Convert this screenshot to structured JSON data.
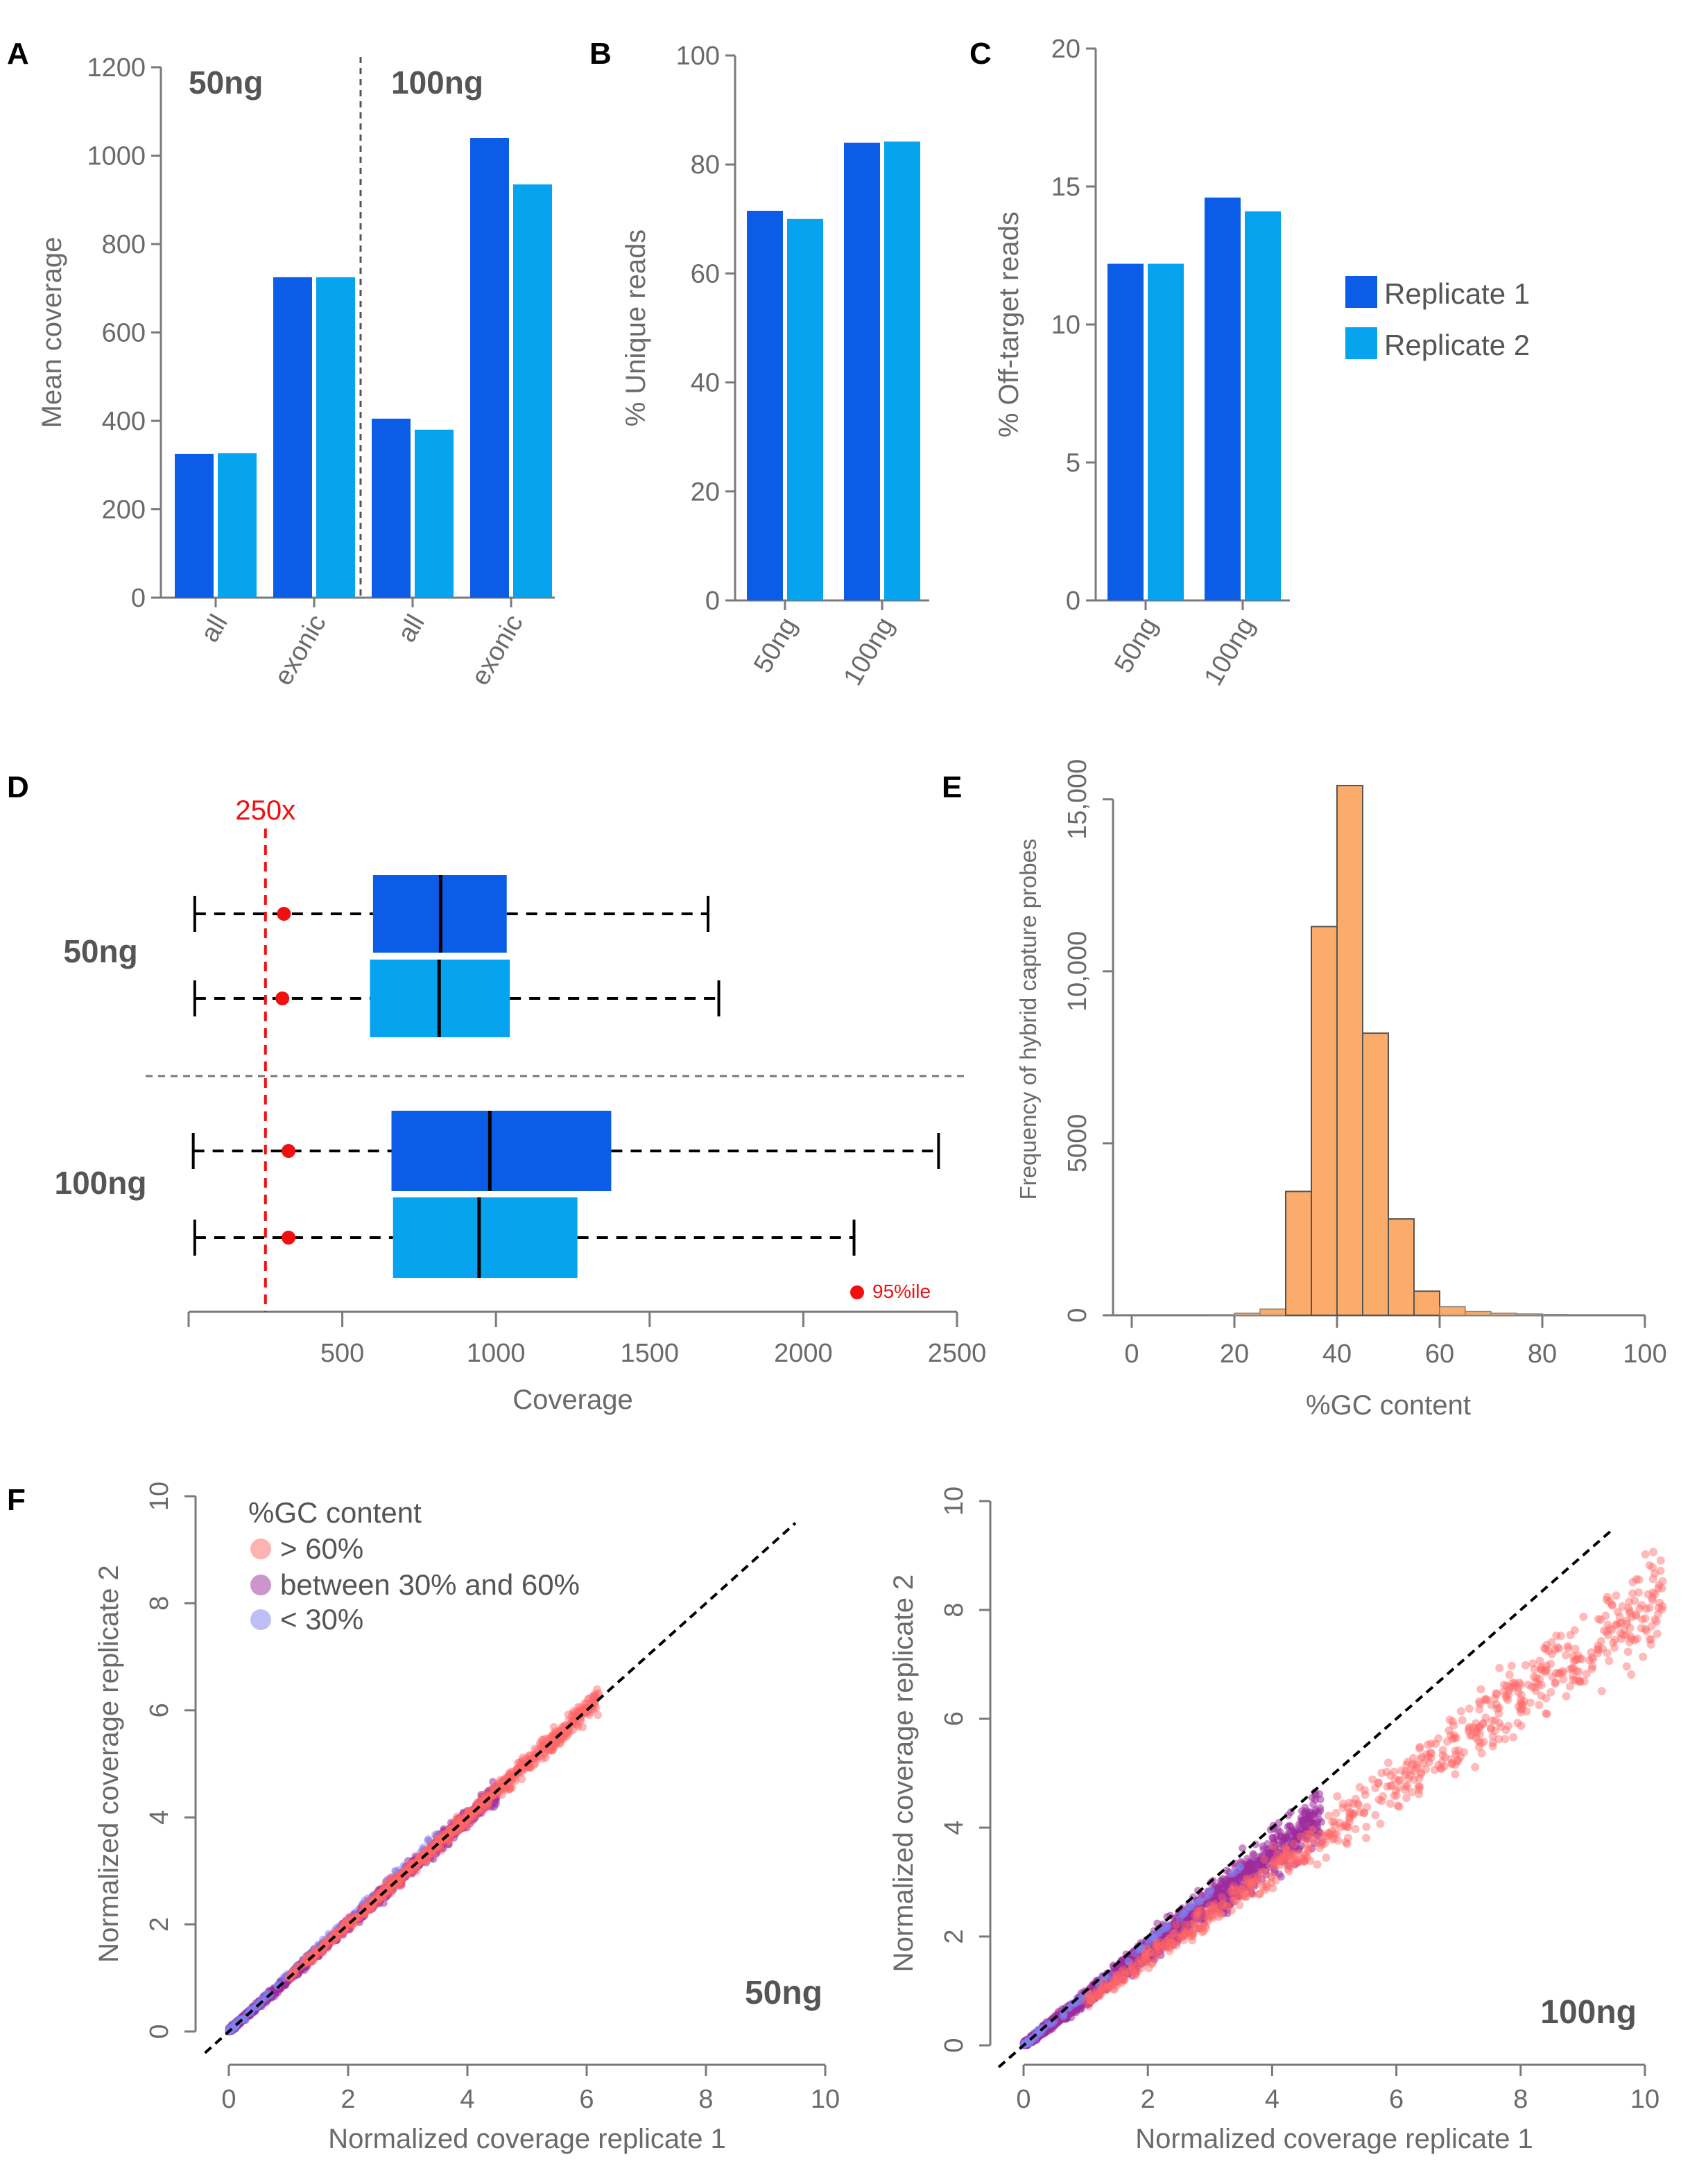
{
  "colors": {
    "rep1": "#0b5de8",
    "rep2": "#06a4ee",
    "axis": "#7a7a7a",
    "red": "#f01010",
    "hist_fill": "#fbac6b",
    "gc_high": "#ff6666",
    "gc_mid": "#9c2c9c",
    "gc_low": "#8080f0"
  },
  "panels": {
    "A": "A",
    "B": "B",
    "C": "C",
    "D": "D",
    "E": "E",
    "F": "F"
  },
  "legend": {
    "rep1": "Replicate 1",
    "rep2": "Replicate 2"
  },
  "chart_data": [
    {
      "id": "A",
      "type": "bar",
      "ylabel": "Mean coverage",
      "ylim": [
        0,
        1200
      ],
      "yticks": [
        "0",
        "200",
        "400",
        "600",
        "800",
        "1000",
        "1200"
      ],
      "categories": [
        "all",
        "exonic",
        "all",
        "exonic"
      ],
      "groups": [
        "50ng",
        "100ng"
      ],
      "series": [
        {
          "name": "Replicate 1",
          "values": [
            325,
            725,
            405,
            1040
          ]
        },
        {
          "name": "Replicate 2",
          "values": [
            327,
            725,
            380,
            935
          ]
        }
      ]
    },
    {
      "id": "B",
      "type": "bar",
      "ylabel": "% Unique reads",
      "ylim": [
        0,
        100
      ],
      "yticks": [
        "0",
        "20",
        "40",
        "60",
        "80",
        "100"
      ],
      "categories": [
        "50ng",
        "100ng"
      ],
      "series": [
        {
          "name": "Replicate 1",
          "values": [
            71.5,
            84
          ]
        },
        {
          "name": "Replicate 2",
          "values": [
            70,
            84.2
          ]
        }
      ]
    },
    {
      "id": "C",
      "type": "bar",
      "ylabel": "% Off-target reads",
      "ylim": [
        0,
        20
      ],
      "yticks": [
        "0",
        "5",
        "10",
        "15",
        "20"
      ],
      "categories": [
        "50ng",
        "100ng"
      ],
      "series": [
        {
          "name": "Replicate 1",
          "values": [
            12.2,
            14.6
          ]
        },
        {
          "name": "Replicate 2",
          "values": [
            12.2,
            14.1
          ]
        }
      ]
    },
    {
      "id": "D",
      "type": "boxplot",
      "xlabel": "Coverage",
      "xlim": [
        0,
        2500
      ],
      "xticks": [
        "500",
        "1000",
        "1500",
        "2000",
        "2500"
      ],
      "threshold": 250,
      "threshold_label": "250x",
      "p95_label": "95%ile",
      "groups": [
        {
          "name": "50ng",
          "boxes": [
            {
              "series": "Replicate 1",
              "whisker_low": 20,
              "q1": 600,
              "median": 820,
              "q3": 1035,
              "whisker_high": 1690,
              "p5": 310
            },
            {
              "series": "Replicate 2",
              "whisker_low": 20,
              "q1": 590,
              "median": 815,
              "q3": 1045,
              "whisker_high": 1725,
              "p5": 305
            }
          ]
        },
        {
          "name": "100ng",
          "boxes": [
            {
              "series": "Replicate 1",
              "whisker_low": 15,
              "q1": 660,
              "median": 980,
              "q3": 1375,
              "whisker_high": 2440,
              "p5": 325
            },
            {
              "series": "Replicate 2",
              "whisker_low": 20,
              "q1": 665,
              "median": 945,
              "q3": 1265,
              "whisker_high": 2165,
              "p5": 325
            }
          ]
        }
      ]
    },
    {
      "id": "E",
      "type": "histogram",
      "xlabel": "%GC content",
      "ylabel": "Frequency of hybrid capture probes",
      "xlim": [
        0,
        100
      ],
      "ylim": [
        0,
        15500
      ],
      "xticks": [
        "0",
        "20",
        "40",
        "60",
        "80",
        "100"
      ],
      "yticks": [
        "0",
        "5000",
        "10,000",
        "15,000"
      ],
      "bin_width": 5,
      "bins": [
        {
          "x": 15,
          "count": 20
        },
        {
          "x": 20,
          "count": 60
        },
        {
          "x": 25,
          "count": 180
        },
        {
          "x": 30,
          "count": 3600
        },
        {
          "x": 35,
          "count": 11300
        },
        {
          "x": 40,
          "count": 15400
        },
        {
          "x": 45,
          "count": 8200
        },
        {
          "x": 50,
          "count": 2800
        },
        {
          "x": 55,
          "count": 700
        },
        {
          "x": 60,
          "count": 250
        },
        {
          "x": 65,
          "count": 110
        },
        {
          "x": 70,
          "count": 60
        },
        {
          "x": 75,
          "count": 40
        },
        {
          "x": 80,
          "count": 25
        }
      ]
    },
    {
      "id": "F1",
      "type": "scatter",
      "xlabel": "Normalized coverage replicate 1",
      "ylabel": "Normalized coverage replicate 2",
      "xlim": [
        0,
        10
      ],
      "ylim": [
        0,
        10
      ],
      "xticks": [
        "0",
        "2",
        "4",
        "6",
        "8",
        "10"
      ],
      "yticks": [
        "0",
        "2",
        "4",
        "6",
        "8",
        "10"
      ],
      "label": "50ng",
      "legend_title": "%GC content",
      "legend": [
        "> 60%",
        "between 30% and 60%",
        "< 30%"
      ],
      "trend": {
        "slope": 1.0,
        "spread": 0.03,
        "mid_max": 4.5,
        "high_max": 6.2,
        "high_slope": 1.0
      },
      "reference_line": "y = x"
    },
    {
      "id": "F2",
      "type": "scatter",
      "xlabel": "Normalized coverage replicate 1",
      "ylabel": "Normalized coverage replicate 2",
      "xlim": [
        0,
        10
      ],
      "ylim": [
        0,
        10
      ],
      "xticks": [
        "0",
        "2",
        "4",
        "6",
        "8",
        "10"
      ],
      "yticks": [
        "0",
        "2",
        "4",
        "6",
        "8",
        "10"
      ],
      "label": "100ng",
      "trend": {
        "slope": 0.88,
        "spread": 0.09,
        "mid_max": 4.8,
        "high_max": 10.3,
        "high_slope": 0.8
      },
      "reference_line": "y = x"
    }
  ]
}
